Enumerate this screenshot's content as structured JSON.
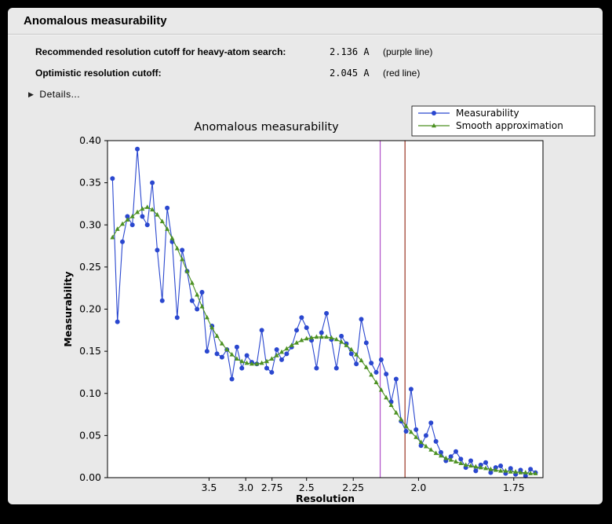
{
  "window": {
    "title": "Anomalous measurability"
  },
  "info": {
    "rows": [
      {
        "label": "Recommended resolution cutoff for heavy-atom search:",
        "value": "2.136 A",
        "note": "(purple line)"
      },
      {
        "label": "Optimistic resolution cutoff:",
        "value": "2.045 A",
        "note": "(red line)"
      }
    ]
  },
  "details": {
    "label": "Details...",
    "triangle": "▶"
  },
  "chart_data": {
    "type": "line",
    "title": "Anomalous measurability",
    "xlabel": "Resolution",
    "ylabel": "Measurability",
    "grid": false,
    "legend_position": "top-right",
    "x_axis": {
      "scale": "1/d^2",
      "s_min": 0.0,
      "s_max": 0.35,
      "ticks": [
        "3.5",
        "3.0",
        "2.75",
        "2.5",
        "2.25",
        "2.0",
        "1.75"
      ]
    },
    "y_axis": {
      "min": 0.0,
      "max": 0.4,
      "ticks": [
        "0.00",
        "0.05",
        "0.10",
        "0.15",
        "0.20",
        "0.25",
        "0.30",
        "0.35",
        "0.40"
      ]
    },
    "x_s": [
      0.004,
      0.008,
      0.012,
      0.016,
      0.02,
      0.024,
      0.028,
      0.032,
      0.036,
      0.04,
      0.044,
      0.048,
      0.052,
      0.056,
      0.06,
      0.064,
      0.068,
      0.072,
      0.076,
      0.08,
      0.084,
      0.088,
      0.092,
      0.096,
      0.1,
      0.104,
      0.108,
      0.112,
      0.116,
      0.12,
      0.124,
      0.128,
      0.132,
      0.136,
      0.14,
      0.144,
      0.148,
      0.152,
      0.156,
      0.16,
      0.164,
      0.168,
      0.172,
      0.176,
      0.18,
      0.184,
      0.188,
      0.192,
      0.196,
      0.2,
      0.204,
      0.208,
      0.212,
      0.216,
      0.22,
      0.224,
      0.228,
      0.232,
      0.236,
      0.24,
      0.244,
      0.248,
      0.252,
      0.256,
      0.26,
      0.264,
      0.268,
      0.272,
      0.276,
      0.28,
      0.284,
      0.288,
      0.292,
      0.296,
      0.3,
      0.304,
      0.308,
      0.312,
      0.316,
      0.32,
      0.324,
      0.328,
      0.332,
      0.336,
      0.34,
      0.344
    ],
    "series": [
      {
        "name": "Measurability",
        "color": "#2a47cf",
        "marker": "circle",
        "values": [
          0.355,
          0.185,
          0.28,
          0.31,
          0.3,
          0.39,
          0.31,
          0.3,
          0.35,
          0.27,
          0.21,
          0.32,
          0.28,
          0.19,
          0.27,
          0.245,
          0.21,
          0.2,
          0.22,
          0.15,
          0.18,
          0.147,
          0.143,
          0.152,
          0.117,
          0.155,
          0.13,
          0.145,
          0.137,
          0.135,
          0.175,
          0.13,
          0.125,
          0.152,
          0.14,
          0.147,
          0.155,
          0.175,
          0.19,
          0.178,
          0.163,
          0.13,
          0.172,
          0.195,
          0.164,
          0.13,
          0.168,
          0.159,
          0.147,
          0.135,
          0.188,
          0.16,
          0.136,
          0.125,
          0.14,
          0.123,
          0.09,
          0.117,
          0.067,
          0.055,
          0.105,
          0.057,
          0.038,
          0.05,
          0.065,
          0.043,
          0.03,
          0.02,
          0.025,
          0.031,
          0.022,
          0.012,
          0.02,
          0.008,
          0.015,
          0.018,
          0.006,
          0.012,
          0.014,
          0.005,
          0.011,
          0.004,
          0.009,
          0.002,
          0.01,
          0.006
        ]
      },
      {
        "name": "Smooth approximation",
        "color": "#4c9122",
        "marker": "triangle",
        "values": [
          0.285,
          0.295,
          0.301,
          0.306,
          0.31,
          0.315,
          0.319,
          0.321,
          0.318,
          0.312,
          0.304,
          0.295,
          0.284,
          0.272,
          0.259,
          0.245,
          0.231,
          0.217,
          0.203,
          0.19,
          0.178,
          0.168,
          0.159,
          0.152,
          0.146,
          0.141,
          0.138,
          0.136,
          0.135,
          0.135,
          0.136,
          0.138,
          0.141,
          0.145,
          0.149,
          0.153,
          0.157,
          0.16,
          0.163,
          0.165,
          0.166,
          0.167,
          0.167,
          0.167,
          0.166,
          0.164,
          0.161,
          0.157,
          0.152,
          0.146,
          0.139,
          0.131,
          0.122,
          0.113,
          0.104,
          0.095,
          0.086,
          0.077,
          0.069,
          0.061,
          0.054,
          0.048,
          0.042,
          0.037,
          0.033,
          0.029,
          0.026,
          0.023,
          0.021,
          0.019,
          0.017,
          0.015,
          0.014,
          0.013,
          0.012,
          0.011,
          0.01,
          0.009,
          0.008,
          0.008,
          0.007,
          0.007,
          0.006,
          0.006,
          0.005,
          0.005
        ]
      }
    ],
    "vlines": [
      {
        "x_resolution": 2.136,
        "color": "#b050c8",
        "label": "purple line"
      },
      {
        "x_resolution": 2.045,
        "color": "#993322",
        "label": "red line"
      }
    ]
  }
}
